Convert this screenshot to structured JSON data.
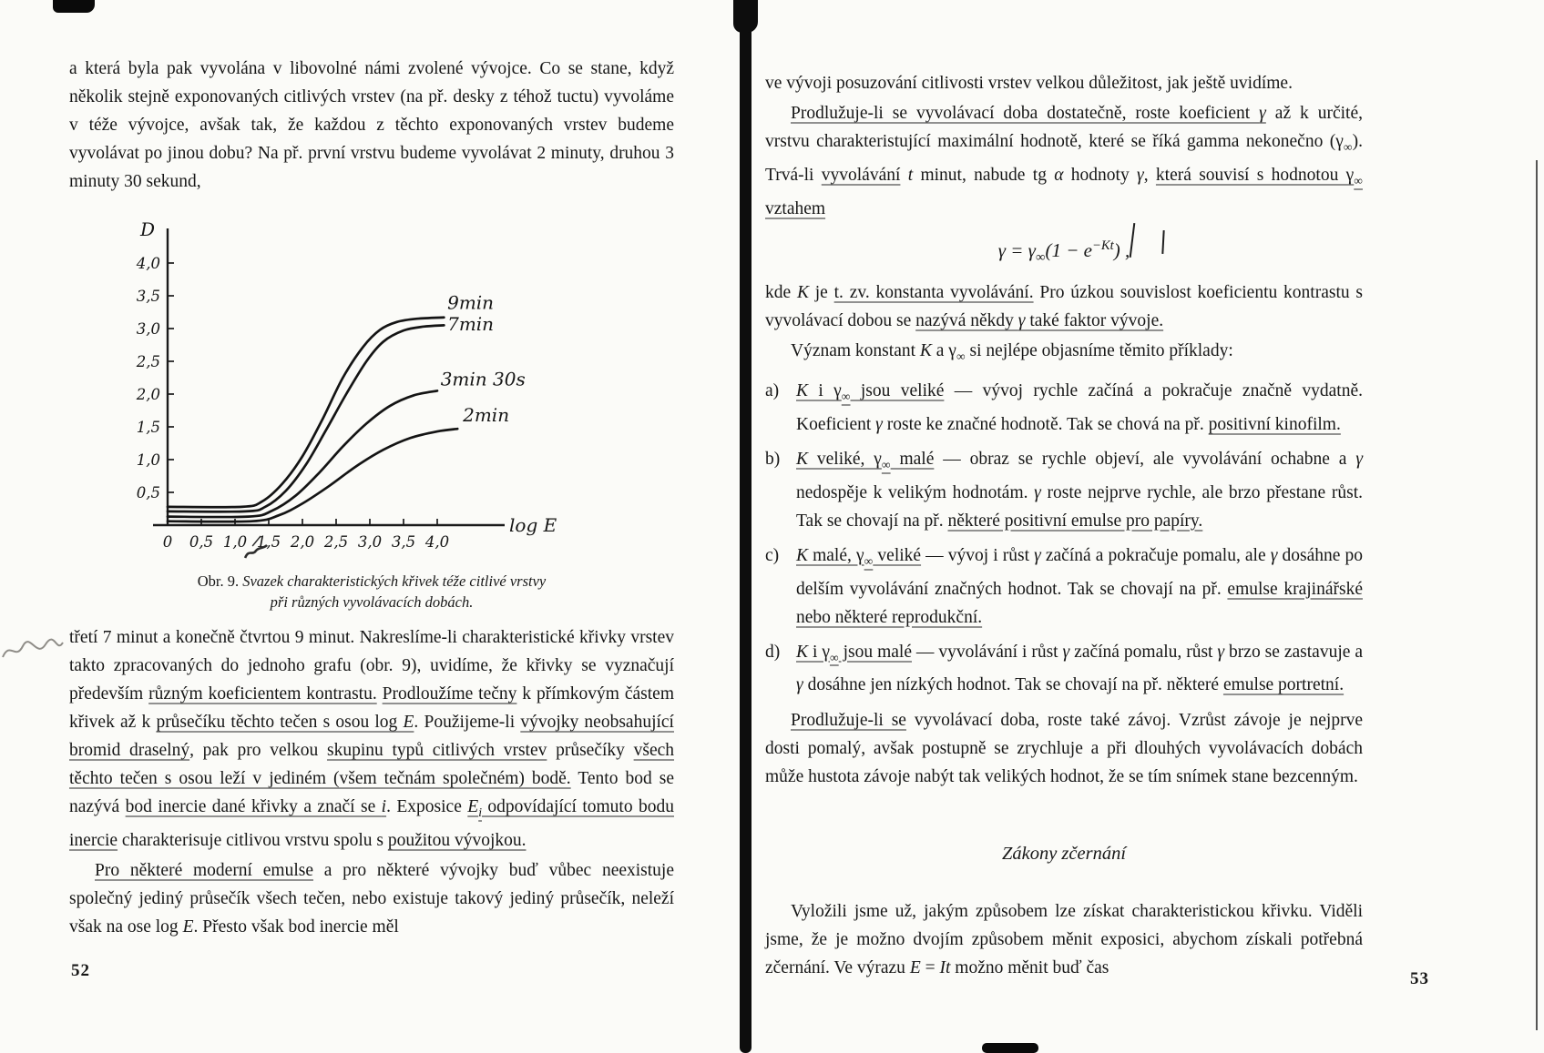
{
  "document": {
    "left_page": {
      "page_number": "52",
      "para_intro": [
        {
          "t": "a která byla pak vyvolána v libovolné námi zvolené vývojce. Co se stane, když několik stejně exponovaných citlivých vrstev (na př. desky z téhož tuctu) vyvoláme v téže vývojce, avšak tak, že každou z těchto exponovaných vrstev budeme vyvolávat po jinou dobu? Na př. první vrstvu budeme vyvolávat 2 minuty, druhou 3 minuty 30 sekund,"
        }
      ],
      "figure_caption_line1": [
        {
          "t": "Obr. 9. "
        },
        {
          "t": "Svazek charakteristických křivek téže citlivé vrstvy",
          "i": true
        }
      ],
      "figure_caption_line2": [
        {
          "t": "při různých vyvolávacích dobách.",
          "i": true
        }
      ],
      "para_after_figure": [
        {
          "t": "třetí 7 minut a konečně čtvrtou 9 minut. Nakreslíme-li charakteristické křivky vrstev takto zpracovaných do jednoho grafu (obr. 9), uvidíme, že křivky se vyznačují především "
        },
        {
          "t": "různým koeficientem kontrastu.",
          "u": true
        },
        {
          "t": " "
        },
        {
          "t": "Prodloužíme tečny",
          "u": true
        },
        {
          "t": " k přímkovým částem křivek až k "
        },
        {
          "t": "průsečíku těchto tečen s osou log ",
          "u": true
        },
        {
          "t": "E",
          "i": true,
          "u": true
        },
        {
          "t": ". Použijeme-li "
        },
        {
          "t": "vývojky neobsahující bromid draselný",
          "u": true
        },
        {
          "t": ", pak pro velkou "
        },
        {
          "t": "skupinu typů citlivých vrstev",
          "u": true
        },
        {
          "t": " průsečíky "
        },
        {
          "t": "všech těchto tečen s osou leží v jediném (všem tečnám společném) bodě.",
          "u": true
        },
        {
          "t": " Tento bod se nazývá "
        },
        {
          "t": "bod inercie dané křivky a značí se ",
          "u": true
        },
        {
          "t": "i",
          "i": true,
          "u": true
        },
        {
          "t": ". Exposice "
        },
        {
          "t": "E",
          "i": true,
          "u": true
        },
        {
          "t": "i",
          "sub": true,
          "i": true,
          "u": true
        },
        {
          "t": " odpovídající tomuto bodu inercie",
          "u": true
        },
        {
          "t": " charakterisuje citlivou vrstvu spolu s "
        },
        {
          "t": "použitou vývojkou.",
          "u": true
        }
      ],
      "para_last": [
        {
          "t": "Pro některé moderní emulse",
          "u": true
        },
        {
          "t": " a pro některé vývojky buď vůbec neexistuje společný jediný průsečík všech tečen, nebo existuje takový jediný průsečík, neleží však na ose log "
        },
        {
          "t": "E",
          "i": true
        },
        {
          "t": ". Přesto však bod inercie měl"
        }
      ]
    },
    "right_page": {
      "page_number": "53",
      "para_continuation": [
        {
          "t": "ve vývoji posuzování citlivosti vrstev velkou důležitost, jak ještě uvidíme."
        }
      ],
      "para_gamma": [
        {
          "t": "Prodlužuje-li se vyvolávací doba dostatečně, roste koeficient ",
          "u": true
        },
        {
          "t": "γ",
          "i": true,
          "u": true
        },
        {
          "t": " až k určité, vrstvu charakteristující maximální hodnotě, které se říká gamma nekonečno (γ"
        },
        {
          "t": "∞",
          "sub": true
        },
        {
          "t": "). Trvá-li "
        },
        {
          "t": "vyvolávání",
          "u": true
        },
        {
          "t": " "
        },
        {
          "t": "t",
          "i": true
        },
        {
          "t": " minut, nabude tg "
        },
        {
          "t": "α",
          "i": true
        },
        {
          "t": " hodnoty "
        },
        {
          "t": "γ",
          "i": true
        },
        {
          "t": ", "
        },
        {
          "t": "která souvisí s hodnotou γ",
          "u": true
        },
        {
          "t": "∞",
          "sub": true,
          "u": true
        },
        {
          "t": " vztahem",
          "u": true
        }
      ],
      "formula": [
        {
          "t": "γ = γ",
          "i": true
        },
        {
          "t": "∞",
          "sub": true
        },
        {
          "t": "(1 − e",
          "i": true
        },
        {
          "t": "−Kt",
          "sup": true,
          "i": true
        },
        {
          "t": ") ,",
          "i": true
        }
      ],
      "para_kde": [
        {
          "t": "kde "
        },
        {
          "t": "K",
          "i": true
        },
        {
          "t": " je "
        },
        {
          "t": "t. zv. konstanta vyvolávání.",
          "u": true
        },
        {
          "t": " Pro úzkou souvislost koeficientu kontrastu s vyvolávací dobou se "
        },
        {
          "t": "nazývá někdy ",
          "u": true
        },
        {
          "t": "γ",
          "i": true,
          "u": true
        },
        {
          "t": " také faktor vývoje.",
          "u": true
        }
      ],
      "para_vyznam": [
        {
          "t": "Význam konstant "
        },
        {
          "t": "K",
          "i": true
        },
        {
          "t": " a γ"
        },
        {
          "t": "∞",
          "sub": true
        },
        {
          "t": " si nejlépe objasníme těmito příklady:"
        }
      ],
      "list": [
        {
          "marker": "a)",
          "segments": [
            {
              "t": "K",
              "i": true,
              "u": true
            },
            {
              "t": " i γ",
              "u": true
            },
            {
              "t": "∞",
              "sub": true,
              "u": true
            },
            {
              "t": " jsou veliké",
              "u": true
            },
            {
              "t": " — vývoj rychle začíná a pokračuje značně vydatně. Koeficient "
            },
            {
              "t": "γ",
              "i": true
            },
            {
              "t": " roste ke značné hodnotě. Tak se chová na př. "
            },
            {
              "t": "positivní kinofilm.",
              "u": true
            }
          ]
        },
        {
          "marker": "b)",
          "segments": [
            {
              "t": "K",
              "i": true,
              "u": true
            },
            {
              "t": " veliké, γ",
              "u": true
            },
            {
              "t": "∞",
              "sub": true,
              "u": true
            },
            {
              "t": " malé",
              "u": true
            },
            {
              "t": " — obraz se rychle objeví, ale vyvolávání ochabne a "
            },
            {
              "t": "γ",
              "i": true
            },
            {
              "t": " nedospěje k velikým hodnotám. "
            },
            {
              "t": "γ",
              "i": true
            },
            {
              "t": " roste nejprve rychle, ale brzo přestane růst. Tak se chovají na př. "
            },
            {
              "t": "některé positivní emulse pro papíry.",
              "u": true
            }
          ]
        },
        {
          "marker": "c)",
          "segments": [
            {
              "t": "K",
              "i": true,
              "u": true
            },
            {
              "t": " malé, γ",
              "u": true
            },
            {
              "t": "∞",
              "sub": true,
              "u": true
            },
            {
              "t": " veliké",
              "u": true
            },
            {
              "t": " — vývoj i růst "
            },
            {
              "t": "γ",
              "i": true
            },
            {
              "t": " začíná a pokračuje pomalu, ale "
            },
            {
              "t": "γ",
              "i": true
            },
            {
              "t": " dosáhne po delším vyvolávání značných hodnot. Tak se chovají na př. "
            },
            {
              "t": "emulse krajinářské nebo některé reprodukční.",
              "u": true
            }
          ]
        },
        {
          "marker": "d)",
          "segments": [
            {
              "t": "K",
              "i": true,
              "u": true
            },
            {
              "t": " i γ",
              "u": true
            },
            {
              "t": "∞",
              "sub": true,
              "u": true
            },
            {
              "t": " jsou malé",
              "u": true
            },
            {
              "t": " — vyvolávání i růst "
            },
            {
              "t": "γ",
              "i": true
            },
            {
              "t": " začíná pomalu, růst "
            },
            {
              "t": "γ",
              "i": true
            },
            {
              "t": " brzo se zastavuje a "
            },
            {
              "t": "γ",
              "i": true
            },
            {
              "t": " dosáhne jen nízkých hodnot. Tak se chovají na př. některé "
            },
            {
              "t": "emulse portretní.",
              "u": true
            }
          ]
        }
      ],
      "para_zavoj": [
        {
          "t": "Prodlužuje-li se",
          "u": true
        },
        {
          "t": " vyvolávací doba, roste také závoj. Vzrůst závoje je nejprve dosti pomalý, avšak postupně se zrychluje a při dlouhých vyvolávacích dobách může hustota závoje nabýt tak velikých hodnot, že se tím snímek stane bezcenným."
        }
      ],
      "section_heading": "Zákony zčernání",
      "para_vylozili": [
        {
          "t": "Vyložili jsme už, jakým způsobem lze získat charakteristickou křivku. Viděli jsme, že je možno dvojím způsobem měnit exposici, abychom získali potřebná zčernání. Ve výrazu "
        },
        {
          "t": "E",
          "i": true
        },
        {
          "t": " = "
        },
        {
          "t": "It",
          "i": true
        },
        {
          "t": " možno měnit buď čas"
        }
      ]
    }
  },
  "chart_data": {
    "type": "line",
    "title": "Obr. 9. Svazek charakteristických křivek téže citlivé vrstvy při různých vyvolávacích dobách.",
    "xlabel": "log E",
    "ylabel": "D",
    "xlim": [
      0,
      5
    ],
    "ylim": [
      0,
      4.5
    ],
    "grid": false,
    "legend_position": "labels-at-line-ends",
    "x_ticks": [
      0,
      0.5,
      1.0,
      1.5,
      2.0,
      2.5,
      3.0,
      3.5,
      4.0
    ],
    "y_ticks": [
      0.5,
      1.0,
      1.5,
      2.0,
      2.5,
      3.0,
      3.5,
      4.0
    ],
    "x_tick_labels": [
      "0",
      "0,5",
      "1,0",
      "1,5",
      "2,0",
      "2,5",
      "3,0",
      "3,5",
      "4,0"
    ],
    "y_tick_labels": [
      "0,5",
      "1,0",
      "1,5",
      "2,0",
      "2,5",
      "3,0",
      "3,5",
      "4,0"
    ],
    "series": [
      {
        "name": "9min",
        "points": [
          [
            0,
            0.28
          ],
          [
            1.1,
            0.28
          ],
          [
            1.4,
            0.36
          ],
          [
            1.7,
            0.63
          ],
          [
            2.0,
            1.05
          ],
          [
            2.3,
            1.62
          ],
          [
            2.6,
            2.25
          ],
          [
            2.9,
            2.72
          ],
          [
            3.15,
            2.98
          ],
          [
            3.4,
            3.1
          ],
          [
            3.7,
            3.15
          ],
          [
            4.1,
            3.17
          ]
        ]
      },
      {
        "name": "7min",
        "points": [
          [
            0,
            0.21
          ],
          [
            1.15,
            0.21
          ],
          [
            1.45,
            0.28
          ],
          [
            1.75,
            0.52
          ],
          [
            2.05,
            0.92
          ],
          [
            2.35,
            1.45
          ],
          [
            2.65,
            2.0
          ],
          [
            2.95,
            2.5
          ],
          [
            3.2,
            2.8
          ],
          [
            3.5,
            2.97
          ],
          [
            3.8,
            3.03
          ],
          [
            4.1,
            3.05
          ]
        ]
      },
      {
        "name": "3min 30s",
        "points": [
          [
            0,
            0.13
          ],
          [
            1.2,
            0.13
          ],
          [
            1.55,
            0.22
          ],
          [
            1.9,
            0.45
          ],
          [
            2.25,
            0.8
          ],
          [
            2.6,
            1.2
          ],
          [
            2.95,
            1.55
          ],
          [
            3.3,
            1.82
          ],
          [
            3.65,
            1.98
          ],
          [
            4.0,
            2.05
          ]
        ]
      },
      {
        "name": "2min",
        "points": [
          [
            0,
            0.06
          ],
          [
            1.25,
            0.06
          ],
          [
            1.65,
            0.15
          ],
          [
            2.0,
            0.33
          ],
          [
            2.4,
            0.6
          ],
          [
            2.8,
            0.9
          ],
          [
            3.2,
            1.15
          ],
          [
            3.6,
            1.33
          ],
          [
            4.0,
            1.43
          ],
          [
            4.3,
            1.47
          ]
        ]
      }
    ],
    "series_label_positions": [
      [
        4.15,
        3.3
      ],
      [
        4.15,
        2.97
      ],
      [
        4.05,
        2.13
      ],
      [
        4.38,
        1.58
      ]
    ],
    "annotations": [
      "inertia-point-mark near log E = 1.3 below axis"
    ]
  }
}
